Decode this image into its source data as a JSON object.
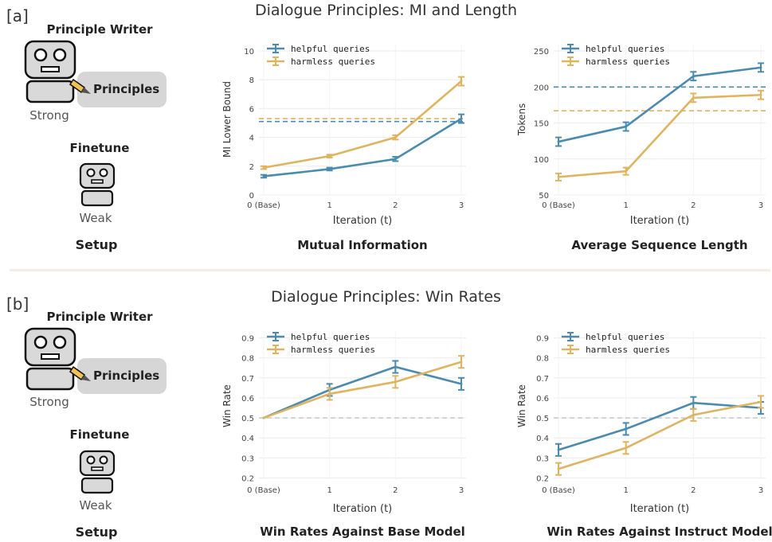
{
  "panels": {
    "a": {
      "label": "[a]",
      "title": "Dialogue Principles: MI and Length",
      "setup": {
        "writer_label": "Principle Writer",
        "principles_label": "Principles",
        "strong_label": "Strong",
        "finetune_label": "Finetune",
        "weak_label": "Weak",
        "caption": "Setup"
      }
    },
    "b": {
      "label": "[b]",
      "title": "Dialogue Principles: Win Rates",
      "setup": {
        "writer_label": "Principle Writer",
        "principles_label": "Principles",
        "strong_label": "Strong",
        "finetune_label": "Finetune",
        "weak_label": "Weak",
        "caption": "Setup"
      }
    }
  },
  "colors": {
    "helpful": "#4a8bb0",
    "harmless": "#e0b45e",
    "baseline": "#c8c8c8"
  },
  "chart_data": [
    {
      "id": "mi",
      "type": "line",
      "caption": "Mutual Information",
      "xlabel": "Iteration (t)",
      "ylabel": "MI Lower Bound",
      "x": [
        "0 (Base)",
        "1",
        "2",
        "3"
      ],
      "ylim": [
        0,
        10.5
      ],
      "yticks": [
        "0",
        "2",
        "4",
        "6",
        "8",
        "10"
      ],
      "grid": true,
      "legend": "top-left",
      "series": [
        {
          "name": "helpful queries",
          "values": [
            1.3,
            1.8,
            2.5,
            5.3
          ],
          "err": [
            0.1,
            0.1,
            0.15,
            0.3
          ],
          "hline": 5.1
        },
        {
          "name": "harmless queries",
          "values": [
            1.9,
            2.7,
            4.0,
            7.9
          ],
          "err": [
            0.1,
            0.1,
            0.15,
            0.3
          ],
          "hline": 5.3
        }
      ]
    },
    {
      "id": "len",
      "type": "line",
      "caption": "Average Sequence Length",
      "xlabel": "Iteration (t)",
      "ylabel": "Tokens",
      "x": [
        "0 (Base)",
        "1",
        "2",
        "3"
      ],
      "ylim": [
        50,
        260
      ],
      "yticks": [
        "50",
        "100",
        "150",
        "200",
        "250"
      ],
      "grid": true,
      "legend": "top-left",
      "series": [
        {
          "name": "helpful queries",
          "values": [
            124,
            145,
            215,
            227
          ],
          "err": [
            6,
            6,
            6,
            6
          ],
          "hline": 200
        },
        {
          "name": "harmless queries",
          "values": [
            75,
            83,
            185,
            189
          ],
          "err": [
            5,
            5,
            6,
            6
          ],
          "hline": 167
        }
      ]
    },
    {
      "id": "wr_base",
      "type": "line",
      "caption": "Win Rates Against Base Model",
      "xlabel": "Iteration (t)",
      "ylabel": "Win Rate",
      "x": [
        "0 (Base)",
        "1",
        "2",
        "3"
      ],
      "ylim": [
        0.19,
        0.93
      ],
      "yticks": [
        "0.2",
        "0.3",
        "0.4",
        "0.5",
        "0.6",
        "0.7",
        "0.8",
        "0.9"
      ],
      "grid": true,
      "legend": "top-left",
      "baseline": 0.5,
      "series": [
        {
          "name": "helpful queries",
          "values": [
            0.5,
            0.64,
            0.755,
            0.67
          ],
          "err": [
            0,
            0.03,
            0.03,
            0.03
          ]
        },
        {
          "name": "harmless queries",
          "values": [
            0.5,
            0.62,
            0.68,
            0.78
          ],
          "err": [
            0,
            0.03,
            0.03,
            0.03
          ]
        }
      ]
    },
    {
      "id": "wr_instruct",
      "type": "line",
      "caption": "Win Rates Against Instruct Model",
      "xlabel": "Iteration (t)",
      "ylabel": "Win Rate",
      "x": [
        "0 (Base)",
        "1",
        "2",
        "3"
      ],
      "ylim": [
        0.19,
        0.93
      ],
      "yticks": [
        "0.2",
        "0.3",
        "0.4",
        "0.5",
        "0.6",
        "0.7",
        "0.8",
        "0.9"
      ],
      "grid": true,
      "legend": "top-left",
      "baseline": 0.5,
      "series": [
        {
          "name": "helpful queries",
          "values": [
            0.34,
            0.445,
            0.575,
            0.55
          ],
          "err": [
            0.03,
            0.03,
            0.03,
            0.03
          ]
        },
        {
          "name": "harmless queries",
          "values": [
            0.245,
            0.35,
            0.515,
            0.58
          ],
          "err": [
            0.03,
            0.03,
            0.03,
            0.03
          ]
        }
      ]
    }
  ]
}
